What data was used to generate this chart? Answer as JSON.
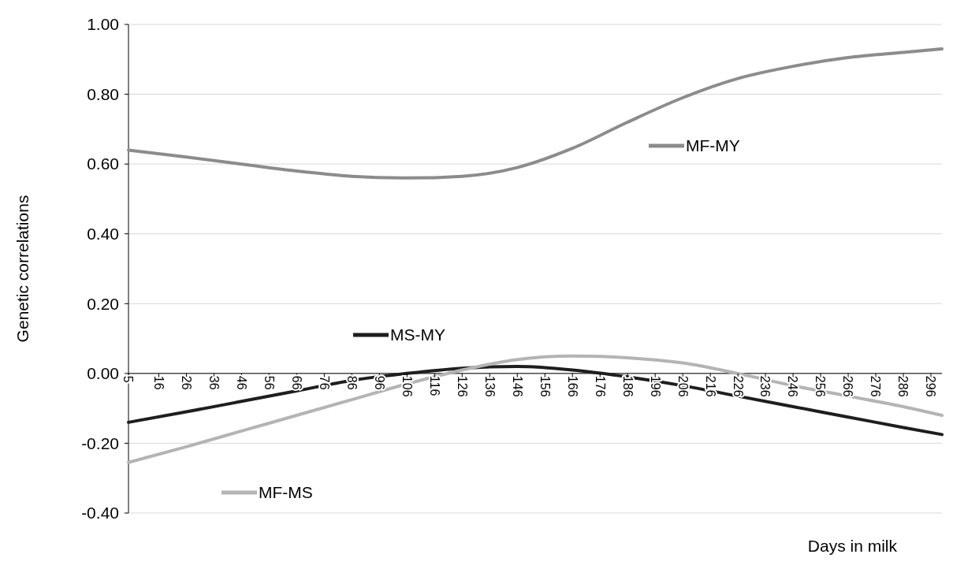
{
  "chart_data": {
    "type": "line",
    "xlabel": "Days in milk",
    "ylabel": "Genetic correlations",
    "xlim": [
      5,
      300
    ],
    "xticks": [
      5,
      16,
      26,
      36,
      46,
      56,
      66,
      76,
      86,
      96,
      106,
      116,
      126,
      136,
      146,
      156,
      166,
      176,
      186,
      196,
      206,
      216,
      226,
      236,
      246,
      256,
      266,
      276,
      286,
      296
    ],
    "ylim": [
      -0.4,
      1.0
    ],
    "yticks": [
      {
        "value": -0.4,
        "label": "-0.40"
      },
      {
        "value": -0.2,
        "label": "-0.20"
      },
      {
        "value": 0,
        "label": "0.00"
      },
      {
        "value": 0.2,
        "label": "0.20"
      },
      {
        "value": 0.4,
        "label": "0.40"
      },
      {
        "value": 0.6,
        "label": "0.60"
      },
      {
        "value": 0.8,
        "label": "0.80"
      },
      {
        "value": 1.0,
        "label": "1.00"
      }
    ],
    "grid": "y",
    "legend": "center",
    "marker": "none",
    "line_style": "solid",
    "x": [
      5,
      26,
      46,
      66,
      86,
      106,
      126,
      146,
      166,
      186,
      206,
      226,
      246,
      266,
      286,
      300
    ],
    "series": [
      {
        "name": "MF-MY",
        "color": "#8c8c8c",
        "values": [
          0.64,
          0.62,
          0.6,
          0.58,
          0.565,
          0.56,
          0.565,
          0.59,
          0.645,
          0.72,
          0.79,
          0.845,
          0.88,
          0.905,
          0.92,
          0.93
        ]
      },
      {
        "name": "MS-MY",
        "color": "#1e1e1e",
        "values": [
          -0.14,
          -0.11,
          -0.08,
          -0.05,
          -0.02,
          0.0,
          0.015,
          0.02,
          0.01,
          -0.01,
          -0.035,
          -0.065,
          -0.095,
          -0.125,
          -0.155,
          -0.175
        ]
      },
      {
        "name": "MF-MS",
        "color": "#b4b4b4",
        "values": [
          -0.255,
          -0.21,
          -0.165,
          -0.12,
          -0.075,
          -0.03,
          0.01,
          0.04,
          0.05,
          0.045,
          0.03,
          0.0,
          -0.035,
          -0.065,
          -0.095,
          -0.12
        ]
      }
    ]
  }
}
